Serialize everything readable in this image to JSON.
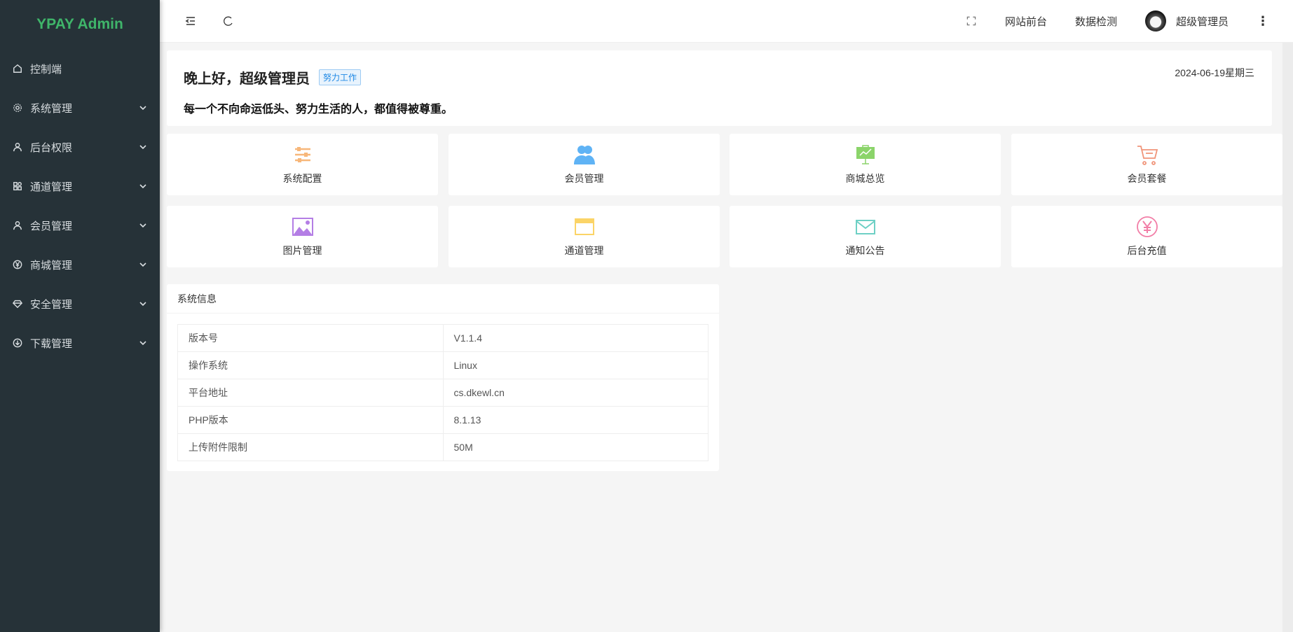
{
  "app": {
    "title": "YPAY Admin"
  },
  "sidebar": {
    "items": [
      {
        "label": "控制端",
        "icon": "home-icon",
        "expandable": false
      },
      {
        "label": "系统管理",
        "icon": "gear-icon",
        "expandable": true
      },
      {
        "label": "后台权限",
        "icon": "user-icon",
        "expandable": true
      },
      {
        "label": "通道管理",
        "icon": "apps-icon",
        "expandable": true
      },
      {
        "label": "会员管理",
        "icon": "user-icon",
        "expandable": true
      },
      {
        "label": "商城管理",
        "icon": "yen-icon",
        "expandable": true
      },
      {
        "label": "安全管理",
        "icon": "diamond-icon",
        "expandable": true
      },
      {
        "label": "下载管理",
        "icon": "download-icon",
        "expandable": true
      }
    ]
  },
  "header": {
    "site_front": "网站前台",
    "data_check": "数据检测",
    "username": "超级管理员"
  },
  "greeting": {
    "title": "晚上好，超级管理员",
    "badge": "努力工作",
    "motto": "每一个不向命运低头、努力生活的人，都值得被尊重。",
    "date": "2024-06-19星期三"
  },
  "shortcuts": [
    {
      "label": "系统配置",
      "icon": "sliders-icon",
      "color": "#f7b77a"
    },
    {
      "label": "会员管理",
      "icon": "users-icon",
      "color": "#5fb3f5"
    },
    {
      "label": "商城总览",
      "icon": "presentation-icon",
      "color": "#8bd46a"
    },
    {
      "label": "会员套餐",
      "icon": "cart-icon",
      "color": "#f0957a"
    },
    {
      "label": "图片管理",
      "icon": "image-icon",
      "color": "#b47ee5"
    },
    {
      "label": "通道管理",
      "icon": "window-icon",
      "color": "#fbd467"
    },
    {
      "label": "通知公告",
      "icon": "mail-icon",
      "color": "#6ed0c5"
    },
    {
      "label": "后台充值",
      "icon": "yen-circle-icon",
      "color": "#f27ea7"
    }
  ],
  "system_info": {
    "title": "系统信息",
    "rows": [
      {
        "key": "版本号",
        "value": "V1.1.4"
      },
      {
        "key": "操作系统",
        "value": "Linux"
      },
      {
        "key": "平台地址",
        "value": "cs.dkewl.cn"
      },
      {
        "key": "PHP版本",
        "value": "8.1.13"
      },
      {
        "key": "上传附件限制",
        "value": "50M"
      }
    ]
  }
}
